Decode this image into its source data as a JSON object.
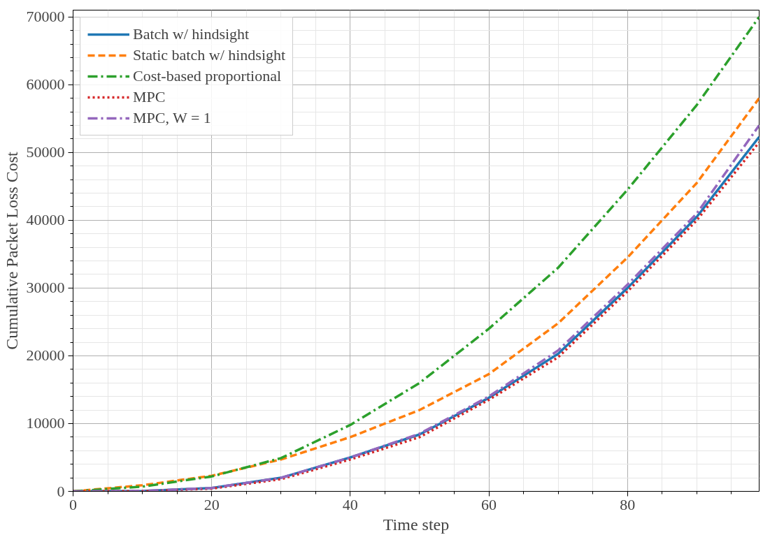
{
  "chart_data": {
    "type": "line",
    "xlabel": "Time step",
    "ylabel": "Cumulative Packet Loss Cost",
    "x": [
      0,
      10,
      20,
      30,
      40,
      50,
      60,
      70,
      80,
      90,
      99
    ],
    "series": [
      {
        "name": "Batch w/ hindsight",
        "color": "#1f77b4",
        "line_style": "solid",
        "values": [
          0,
          50,
          500,
          2000,
          5000,
          8400,
          13800,
          20300,
          30000,
          40500,
          52300
        ]
      },
      {
        "name": "Static batch w/ hindsight",
        "color": "#ff7f0e",
        "line_style": "dashed",
        "values": [
          0,
          900,
          2300,
          4700,
          8000,
          12000,
          17300,
          24800,
          34500,
          45500,
          58000
        ]
      },
      {
        "name": "Cost-based proportional",
        "color": "#2ca02c",
        "line_style": "dashdot",
        "values": [
          0,
          700,
          2200,
          4900,
          9800,
          16000,
          24000,
          33000,
          44500,
          57000,
          70000
        ]
      },
      {
        "name": "MPC",
        "color": "#d62728",
        "line_style": "dotted",
        "values": [
          0,
          30,
          400,
          1800,
          4700,
          8000,
          13500,
          19800,
          29500,
          40000,
          51500
        ]
      },
      {
        "name": "MPC, W = 1",
        "color": "#9467bd",
        "line_style": "dashdot",
        "values": [
          0,
          50,
          500,
          2000,
          5000,
          8500,
          14000,
          20800,
          30500,
          41000,
          54000
        ]
      }
    ],
    "xlim": [
      0,
      99
    ],
    "ylim": [
      0,
      71000
    ],
    "xticks": [
      0,
      20,
      40,
      60,
      80
    ],
    "yticks": [
      0,
      10000,
      20000,
      30000,
      40000,
      50000,
      60000,
      70000
    ],
    "grid": true,
    "legend": "top left"
  }
}
